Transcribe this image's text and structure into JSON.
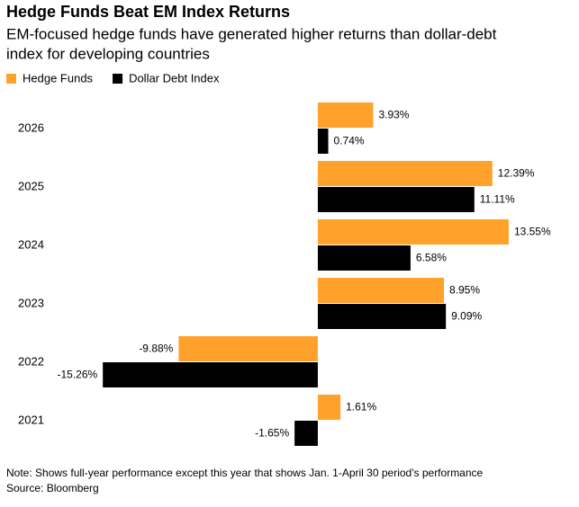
{
  "chart_data": {
    "type": "hbar",
    "title": "Hedge Funds Beat EM Index Returns",
    "subtitle": [
      "EM-focused hedge funds have generated higher returns than dollar-debt",
      "index for developing countries"
    ],
    "categories": [
      "2026",
      "2025",
      "2024",
      "2023",
      "2022",
      "2021"
    ],
    "series": [
      {
        "name": "Hedge Funds",
        "color": "#ffa12b",
        "values": [
          3.93,
          12.39,
          13.55,
          8.95,
          -9.88,
          1.61
        ],
        "value_labels": [
          "3.93%",
          "12.39%",
          "13.55%",
          "8.95%",
          "-9.88%",
          "1.61%"
        ]
      },
      {
        "name": "Dollar Debt Index",
        "color": "#000000",
        "values": [
          0.74,
          11.11,
          6.58,
          9.09,
          -15.26,
          -1.65
        ],
        "value_labels": [
          "0.74%",
          "11.11%",
          "6.58%",
          "9.09%",
          "-15.26%",
          "-1.65%"
        ]
      }
    ],
    "xlim": [
      -16,
      14
    ],
    "notes": [
      "Note: Shows full-year performance except this year that shows Jan. 1-April 30 period's performance",
      "Source: Bloomberg"
    ]
  }
}
